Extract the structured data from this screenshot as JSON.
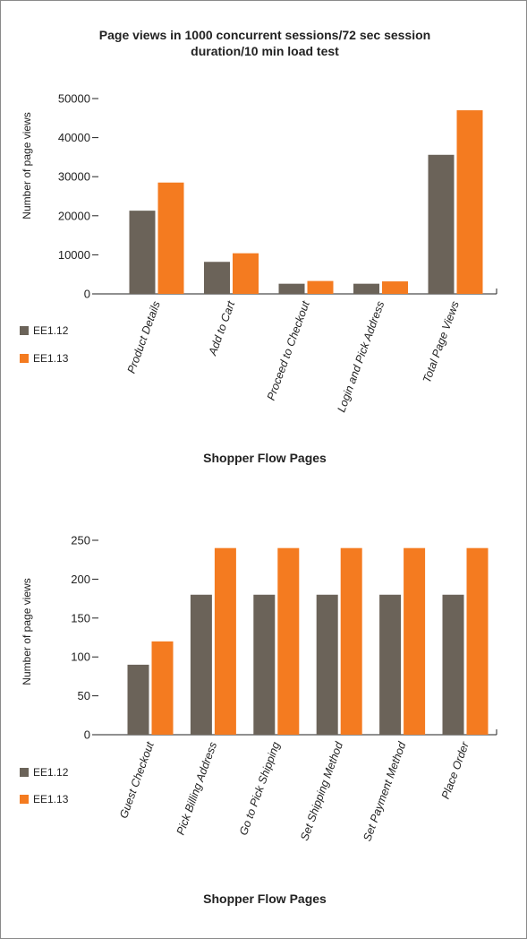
{
  "colors": {
    "ee112": "#6b6359",
    "ee113": "#f47b20",
    "axis": "#222222"
  },
  "chart_data": [
    {
      "type": "bar",
      "title_line1": "Page views in 1000 concurrent sessions/72 sec session",
      "title_line2": "duration/10 min load test",
      "xlabel": "Shopper Flow Pages",
      "ylabel": "Number of page views",
      "ylim": [
        0,
        50000
      ],
      "yticks": [
        0,
        10000,
        20000,
        30000,
        40000,
        50000
      ],
      "categories": [
        "Product Details",
        "Add to Cart",
        "Proceed to Checkout",
        "Login and Pick Address",
        "Total Page Views"
      ],
      "series": [
        {
          "name": "EE1.12",
          "values": [
            21300,
            8200,
            2600,
            2600,
            35600
          ]
        },
        {
          "name": "EE1.13",
          "values": [
            28500,
            10400,
            3300,
            3200,
            47000
          ]
        }
      ],
      "legend": "bottom-left"
    },
    {
      "type": "bar",
      "xlabel": "Shopper Flow Pages",
      "ylabel": "Number of page views",
      "ylim": [
        0,
        250
      ],
      "yticks": [
        0,
        50,
        100,
        150,
        200,
        250
      ],
      "categories": [
        "Guest Checkout",
        "Pick Billing Address",
        "Go to Pick Shipping",
        "Set Shipping Method",
        "Set Payment Method",
        "Place Order"
      ],
      "series": [
        {
          "name": "EE1.12",
          "values": [
            90,
            180,
            180,
            180,
            180,
            180
          ]
        },
        {
          "name": "EE1.13",
          "values": [
            120,
            240,
            240,
            240,
            240,
            240
          ]
        }
      ],
      "legend": "bottom-left"
    }
  ]
}
